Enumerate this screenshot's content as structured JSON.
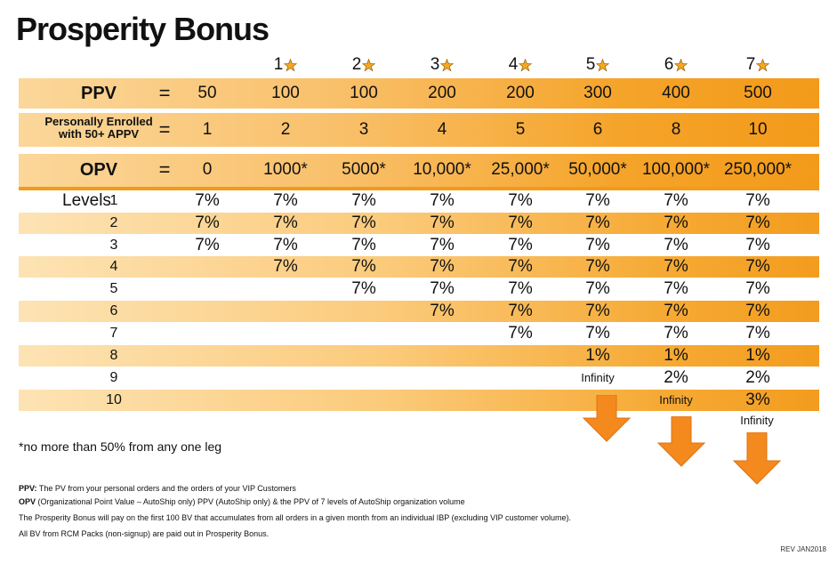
{
  "title": "Prosperity Bonus",
  "stars": [
    "1",
    "2",
    "3",
    "4",
    "5",
    "6",
    "7"
  ],
  "rows": {
    "ppv": {
      "label": "PPV",
      "eq": "=",
      "values": [
        "50",
        "100",
        "100",
        "200",
        "200",
        "300",
        "400",
        "500"
      ]
    },
    "enrolled": {
      "label_line1": "Personally Enrolled",
      "label_line2": "with 50+ APPV",
      "eq": "=",
      "values": [
        "1",
        "2",
        "3",
        "4",
        "5",
        "6",
        "8",
        "10"
      ]
    },
    "opv": {
      "label": "OPV",
      "eq": "=",
      "values": [
        "0",
        "1000*",
        "5000*",
        "10,000*",
        "25,000*",
        "50,000*",
        "100,000*",
        "250,000*"
      ]
    }
  },
  "levels_label": "Levels",
  "levels": [
    {
      "n": "1",
      "values": [
        "7%",
        "7%",
        "7%",
        "7%",
        "7%",
        "7%",
        "7%",
        "7%"
      ]
    },
    {
      "n": "2",
      "values": [
        "7%",
        "7%",
        "7%",
        "7%",
        "7%",
        "7%",
        "7%",
        "7%"
      ]
    },
    {
      "n": "3",
      "values": [
        "7%",
        "7%",
        "7%",
        "7%",
        "7%",
        "7%",
        "7%",
        "7%"
      ]
    },
    {
      "n": "4",
      "values": [
        "",
        "7%",
        "7%",
        "7%",
        "7%",
        "7%",
        "7%",
        "7%"
      ]
    },
    {
      "n": "5",
      "values": [
        "",
        "",
        "7%",
        "7%",
        "7%",
        "7%",
        "7%",
        "7%"
      ]
    },
    {
      "n": "6",
      "values": [
        "",
        "",
        "",
        "7%",
        "7%",
        "7%",
        "7%",
        "7%"
      ]
    },
    {
      "n": "7",
      "values": [
        "",
        "",
        "",
        "",
        "7%",
        "7%",
        "7%",
        "7%"
      ]
    },
    {
      "n": "8",
      "values": [
        "",
        "",
        "",
        "",
        "",
        "1%",
        "1%",
        "1%"
      ]
    },
    {
      "n": "9",
      "values": [
        "",
        "",
        "",
        "",
        "",
        "Infinity",
        "2%",
        "2%"
      ]
    },
    {
      "n": "10",
      "values": [
        "",
        "",
        "",
        "",
        "",
        "",
        "Infinity",
        "3%"
      ]
    }
  ],
  "infinity_last": "Infinity",
  "note": "*no more than 50% from any one leg",
  "footnotes": {
    "ppv_term": "PPV:",
    "ppv_text": " The PV from your personal orders and the orders of your VIP Customers",
    "opv_term": "OPV",
    "opv_text": " (Organizational Point Value – AutoShip only) PPV (AutoShip only) & the PPV of 7 levels of AutoShip organization volume",
    "line3": "The Prosperity Bonus will pay on the first 100 BV that accumulates from all orders in a given month from an individual IBP (excluding VIP customer volume).",
    "line4": "All BV from RCM Packs (non-signup) are paid out in Prosperity Bonus."
  },
  "rev": "REV JAN2018",
  "colors": {
    "orange": "#f39a1a",
    "star": "#f5a623"
  }
}
